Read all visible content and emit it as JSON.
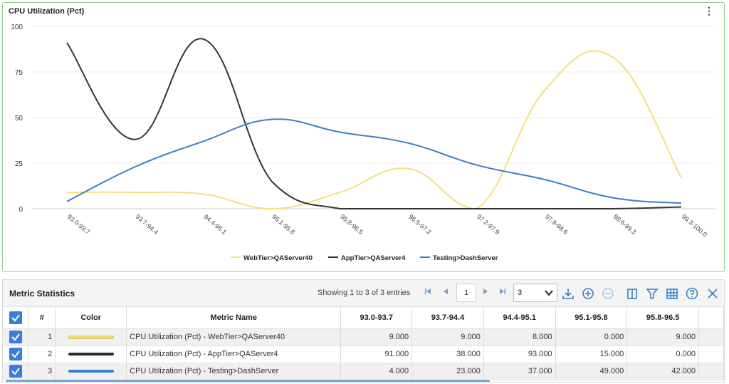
{
  "chart": {
    "title": "CPU Utilization (Pct)",
    "menu_glyph": "⋮"
  },
  "chart_data": {
    "type": "line",
    "categories": [
      "93.0-93.7",
      "93.7-94.4",
      "94.4-95.1",
      "95.1-95.8",
      "95.8-96.5",
      "96.5-97.2",
      "97.2-97.9",
      "97.9-98.6",
      "98.6-99.3",
      "99.3-100.0"
    ],
    "ylim": [
      0,
      100
    ],
    "yticks": [
      0,
      25,
      50,
      75,
      100
    ],
    "grid": true,
    "legend": "bottom",
    "series": [
      {
        "name": "WebTier>QAServer40",
        "color": "#f5de7a",
        "values": [
          9,
          9,
          8,
          0,
          9,
          22,
          0,
          65,
          83,
          17
        ]
      },
      {
        "name": "AppTier>QAServer4",
        "color": "#333333",
        "values": [
          91,
          38,
          93,
          15,
          0,
          0,
          0,
          0,
          0,
          1
        ]
      },
      {
        "name": "Testing>DashServer",
        "color": "#3a7fc5",
        "values": [
          4,
          23,
          37,
          49,
          42,
          36,
          24,
          16,
          6,
          3
        ]
      }
    ]
  },
  "stats": {
    "title": "Metric Statistics",
    "showing": "Showing 1 to 3 of 3 entries",
    "page": "1",
    "page_size": "3",
    "columns": [
      "#",
      "Color",
      "Metric Name",
      "93.0-93.7",
      "93.7-94.4",
      "94.4-95.1",
      "95.1-95.8",
      "95.8-96.5"
    ],
    "rows": [
      {
        "index": "1",
        "color": "#f0dc7a",
        "name": "CPU Utilization (Pct) - WebTier>QAServer40",
        "values": [
          "9.000",
          "9.000",
          "8.000",
          "0.000",
          "9.000"
        ]
      },
      {
        "index": "2",
        "color": "#2b2b2b",
        "name": "CPU Utilization (Pct) - AppTier>QAServer4",
        "values": [
          "91.000",
          "38.000",
          "93.000",
          "15.000",
          "0.000"
        ]
      },
      {
        "index": "3",
        "color": "#3a7fc5",
        "name": "CPU Utilization (Pct) - Testing>DashServer",
        "values": [
          "4.000",
          "23.000",
          "37.000",
          "49.000",
          "42.000"
        ]
      }
    ]
  }
}
